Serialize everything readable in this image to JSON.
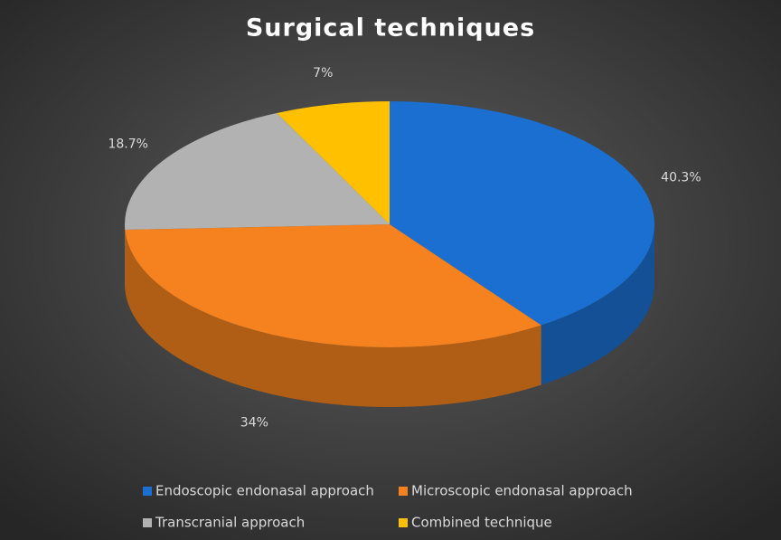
{
  "chart_data": {
    "type": "pie",
    "title": "Surgical techniques",
    "categories": [
      "Endoscopic endonasal approach",
      "Microscopic endonasal approach",
      "Transcranial approach",
      "Combined technique"
    ],
    "values": [
      40.3,
      34,
      18.7,
      7
    ],
    "value_labels": [
      "40.3%",
      "34%",
      "18.7%",
      "7%"
    ],
    "colors": [
      "#1a6fd0",
      "#f5821f",
      "#b2b2b2",
      "#ffc000"
    ],
    "legend": "bottom"
  }
}
